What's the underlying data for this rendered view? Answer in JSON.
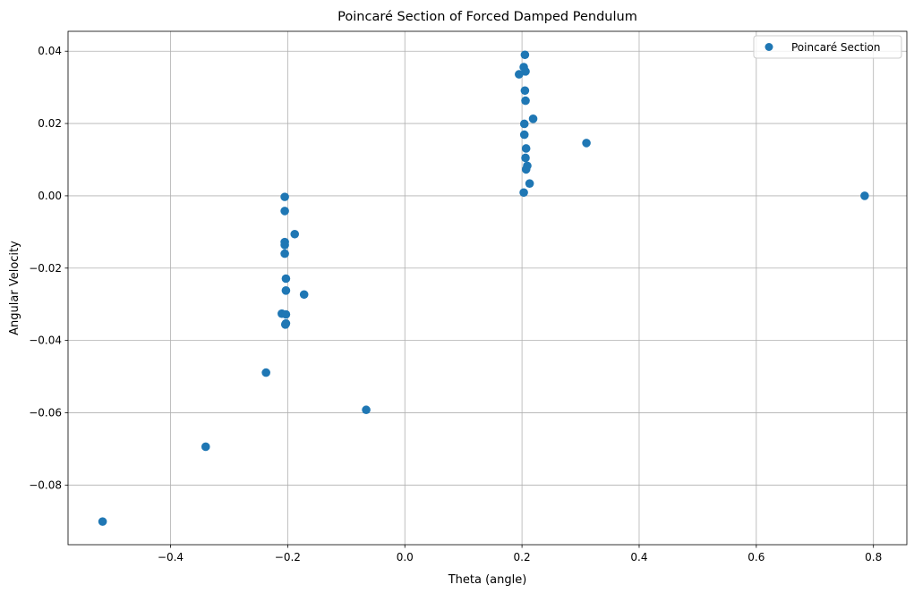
{
  "chart_data": {
    "type": "scatter",
    "title": "Poincaré Section of Forced Damped Pendulum",
    "xlabel": "Theta (angle)",
    "ylabel": "Angular Velocity",
    "xlim": [
      -0.575,
      0.857
    ],
    "ylim": [
      -0.0965,
      0.0455
    ],
    "xticks": [
      -0.4,
      -0.2,
      0.0,
      0.2,
      0.4,
      0.6,
      0.8
    ],
    "xtick_labels": [
      "−0.4",
      "−0.2",
      "0.0",
      "0.2",
      "0.4",
      "0.6",
      "0.8"
    ],
    "yticks": [
      -0.08,
      -0.06,
      -0.04,
      -0.02,
      0.0,
      0.02,
      0.04
    ],
    "ytick_labels": [
      "−0.08",
      "−0.06",
      "−0.04",
      "−0.02",
      "0.00",
      "0.02",
      "0.04"
    ],
    "grid": true,
    "legend_position": "top-right",
    "series": [
      {
        "name": "Poincaré Section",
        "color": "#1f77b4",
        "marker": "circle",
        "points": [
          {
            "x": 0.785,
            "y": 0.0
          },
          {
            "x": 0.205,
            "y": 0.039
          },
          {
            "x": 0.203,
            "y": 0.0356
          },
          {
            "x": 0.206,
            "y": 0.0344
          },
          {
            "x": 0.195,
            "y": 0.0336
          },
          {
            "x": 0.205,
            "y": 0.0291
          },
          {
            "x": 0.206,
            "y": 0.0263
          },
          {
            "x": 0.219,
            "y": 0.0213
          },
          {
            "x": 0.204,
            "y": 0.0199
          },
          {
            "x": 0.204,
            "y": 0.0169
          },
          {
            "x": 0.31,
            "y": 0.0146
          },
          {
            "x": 0.207,
            "y": 0.0131
          },
          {
            "x": 0.206,
            "y": 0.0105
          },
          {
            "x": 0.209,
            "y": 0.0083
          },
          {
            "x": 0.207,
            "y": 0.0073
          },
          {
            "x": 0.213,
            "y": 0.0034
          },
          {
            "x": 0.203,
            "y": 0.0009
          },
          {
            "x": -0.205,
            "y": -0.0003
          },
          {
            "x": -0.205,
            "y": -0.0042
          },
          {
            "x": -0.188,
            "y": -0.0106
          },
          {
            "x": -0.205,
            "y": -0.0128
          },
          {
            "x": -0.205,
            "y": -0.0136
          },
          {
            "x": -0.205,
            "y": -0.016
          },
          {
            "x": -0.203,
            "y": -0.0229
          },
          {
            "x": -0.172,
            "y": -0.0273
          },
          {
            "x": -0.203,
            "y": -0.0262
          },
          {
            "x": -0.21,
            "y": -0.0326
          },
          {
            "x": -0.203,
            "y": -0.0328
          },
          {
            "x": -0.203,
            "y": -0.0353
          },
          {
            "x": -0.204,
            "y": -0.0356
          },
          {
            "x": -0.237,
            "y": -0.0489
          },
          {
            "x": -0.066,
            "y": -0.0592
          },
          {
            "x": -0.34,
            "y": -0.0694
          },
          {
            "x": -0.516,
            "y": -0.0901
          }
        ]
      }
    ]
  }
}
